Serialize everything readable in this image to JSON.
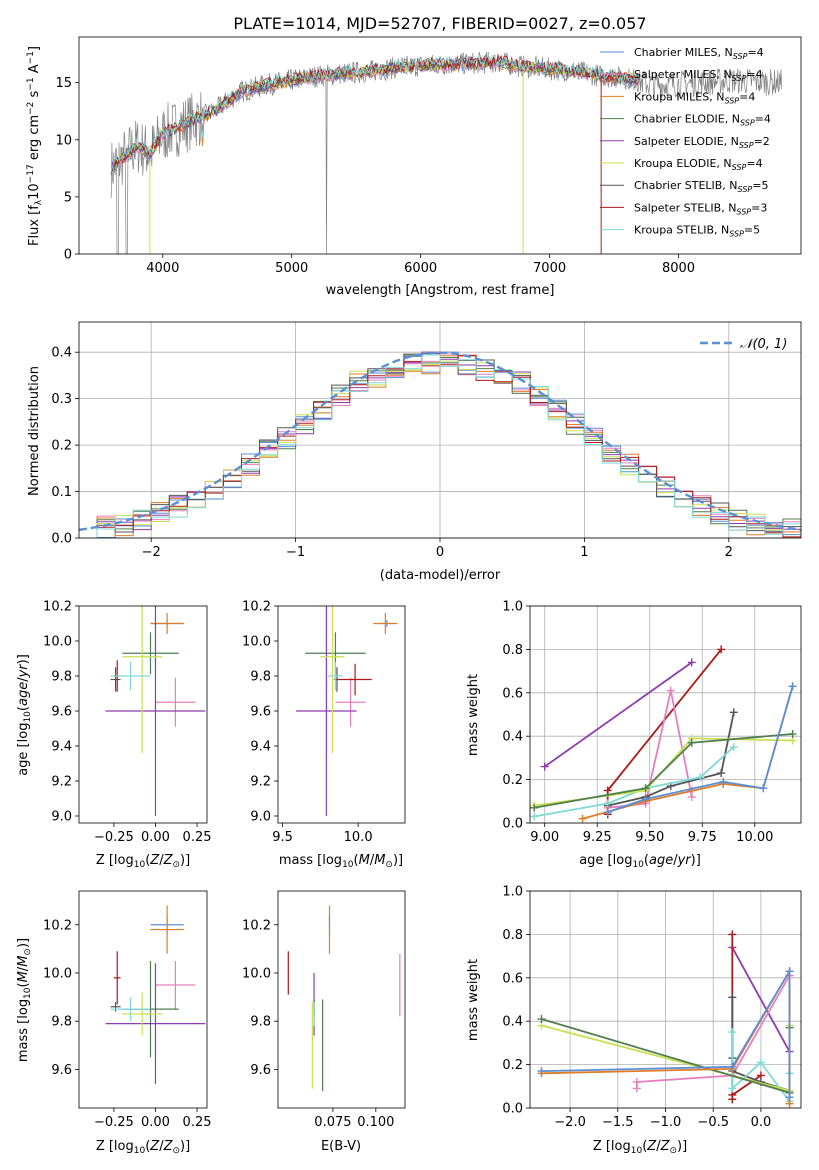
{
  "title": "PLATE=1014, MJD=52707, FIBERID=0027, z=0.057",
  "colors": {
    "Chabrier MILES": "#5b8fd6",
    "Salpeter MILES": "#e77fbf",
    "Kroupa MILES": "#e07b28",
    "Chabrier ELODIE": "#4f7f4f",
    "Salpeter ELODIE": "#8e3bb0",
    "Kroupa ELODIE": "#c8e04f",
    "Chabrier STELIB": "#555555",
    "Salpeter STELIB": "#b01818",
    "Kroupa STELIB": "#7fd9d9",
    "data": "#808080",
    "normal": "#5b8fd6"
  },
  "chart_data": [
    {
      "id": "spectrum",
      "type": "line",
      "xlabel": "wavelength [Angstrom, rest frame]",
      "ylabel": "Flux [f_λ10^-17 erg cm^-2 s^-1 A^-1]",
      "xlim": [
        3350,
        8950
      ],
      "ylim": [
        0,
        19
      ],
      "xticks": [
        4000,
        5000,
        6000,
        7000,
        8000
      ],
      "yticks": [
        0,
        5,
        10,
        15
      ],
      "legend_position": "right",
      "legend": [
        {
          "model": "Chabrier MILES",
          "nssp": "4"
        },
        {
          "model": "Salpeter MILES",
          "nssp": "4"
        },
        {
          "model": "Kroupa MILES",
          "nssp": "4"
        },
        {
          "model": "Chabrier ELODIE",
          "nssp": "4"
        },
        {
          "model": "Salpeter ELODIE",
          "nssp": "2"
        },
        {
          "model": "Kroupa ELODIE",
          "nssp": "4"
        },
        {
          "model": "Chabrier STELIB",
          "nssp": "5"
        },
        {
          "model": "Salpeter STELIB",
          "nssp": "3"
        },
        {
          "model": "Kroupa STELIB",
          "nssp": "5"
        }
      ],
      "continuum": [
        [
          3600,
          7.5
        ],
        [
          3700,
          8.5
        ],
        [
          3800,
          9.5
        ],
        [
          3900,
          8.8
        ],
        [
          4000,
          10.5
        ],
        [
          4200,
          11.5
        ],
        [
          4400,
          12.5
        ],
        [
          4600,
          14.2
        ],
        [
          4800,
          14.8
        ],
        [
          5000,
          15.2
        ],
        [
          5200,
          15.6
        ],
        [
          5400,
          15.8
        ],
        [
          5600,
          16.0
        ],
        [
          5800,
          16.3
        ],
        [
          6000,
          16.5
        ],
        [
          6200,
          16.6
        ],
        [
          6400,
          16.7
        ],
        [
          6600,
          16.8
        ],
        [
          6800,
          16.4
        ],
        [
          7000,
          16.2
        ],
        [
          7200,
          16.0
        ],
        [
          7400,
          15.6
        ],
        [
          7600,
          15.4
        ],
        [
          7800,
          14.8
        ],
        [
          8000,
          14.9
        ],
        [
          8200,
          15.0
        ],
        [
          8400,
          15.2
        ],
        [
          8600,
          15.1
        ],
        [
          8800,
          15.0
        ]
      ]
    },
    {
      "id": "residuals",
      "type": "bar",
      "xlabel": "(data-model)/error",
      "ylabel": "Normed distribution",
      "xlim": [
        -2.5,
        2.5
      ],
      "ylim": [
        0,
        0.465
      ],
      "xticks": [
        -2,
        -1,
        0,
        1,
        2
      ],
      "xtick_labels": [
        "−2",
        "−1",
        "0",
        "1",
        "2"
      ],
      "yticks": [
        0.0,
        0.1,
        0.2,
        0.3,
        0.4
      ],
      "grid": true,
      "legend_position": "top-right",
      "normal_label": "𝒩(0, 1)"
    },
    {
      "id": "age_vs_Z",
      "type": "scatter",
      "xlabel": "Z [log10(Z/Z⊙)]",
      "ylabel": "age [log10(age/yr)]",
      "xlim": [
        -0.46,
        0.31
      ],
      "ylim": [
        8.96,
        10.2
      ],
      "xticks": [
        -0.25,
        0.0,
        0.25
      ],
      "xtick_labels": [
        "−0.25",
        "0.00",
        "0.25"
      ],
      "yticks": [
        9.0,
        9.2,
        9.4,
        9.6,
        9.8,
        10.0,
        10.2
      ],
      "points": [
        {
          "model": "Chabrier MILES",
          "x": 0.07,
          "xerr": 0.1,
          "y": 10.1,
          "yerr": 0.02
        },
        {
          "model": "Salpeter MILES",
          "x": 0.12,
          "xerr": 0.12,
          "y": 9.65,
          "yerr": 0.14
        },
        {
          "model": "Kroupa MILES",
          "x": 0.07,
          "xerr": 0.1,
          "y": 10.1,
          "yerr": 0.06
        },
        {
          "model": "Chabrier ELODIE",
          "x": -0.03,
          "xerr": 0.17,
          "y": 9.93,
          "yerr": 0.12
        },
        {
          "model": "Salpeter ELODIE",
          "x": 0.0,
          "xerr": 0.3,
          "y": 9.6,
          "yerr": 0.6
        },
        {
          "model": "Kroupa ELODIE",
          "x": -0.08,
          "xerr": 0.12,
          "y": 9.91,
          "yerr": 0.55
        },
        {
          "model": "Chabrier STELIB",
          "x": -0.24,
          "xerr": 0.03,
          "y": 9.78,
          "yerr": 0.07
        },
        {
          "model": "Salpeter STELIB",
          "x": -0.23,
          "xerr": 0.02,
          "y": 9.8,
          "yerr": 0.09
        },
        {
          "model": "Kroupa STELIB",
          "x": -0.15,
          "xerr": 0.12,
          "y": 9.8,
          "yerr": 0.08
        }
      ]
    },
    {
      "id": "age_vs_mass",
      "type": "scatter",
      "xlabel": "mass [log10(M/M⊙)]",
      "xlim": [
        9.47,
        10.31
      ],
      "ylim": [
        8.96,
        10.2
      ],
      "xticks": [
        9.5,
        10.0
      ],
      "xtick_labels": [
        "9.5",
        "10.0"
      ],
      "yticks": [
        9.0,
        9.2,
        9.4,
        9.6,
        9.8,
        10.0,
        10.2
      ],
      "points": [
        {
          "model": "Chabrier MILES",
          "x": 10.19,
          "xerr": 0.05,
          "y": 10.1,
          "yerr": 0.02
        },
        {
          "model": "Salpeter MILES",
          "x": 9.95,
          "xerr": 0.1,
          "y": 9.65,
          "yerr": 0.14
        },
        {
          "model": "Kroupa MILES",
          "x": 10.18,
          "xerr": 0.08,
          "y": 10.1,
          "yerr": 0.06
        },
        {
          "model": "Chabrier ELODIE",
          "x": 9.85,
          "xerr": 0.2,
          "y": 9.93,
          "yerr": 0.12
        },
        {
          "model": "Salpeter ELODIE",
          "x": 9.79,
          "xerr": 0.2,
          "y": 9.6,
          "yerr": 0.6
        },
        {
          "model": "Kroupa ELODIE",
          "x": 9.83,
          "xerr": 0.08,
          "y": 9.91,
          "yerr": 0.55
        },
        {
          "model": "Chabrier STELIB",
          "x": 9.86,
          "xerr": 0.02,
          "y": 9.78,
          "yerr": 0.07
        },
        {
          "model": "Salpeter STELIB",
          "x": 9.98,
          "xerr": 0.11,
          "y": 9.78,
          "yerr": 0.09
        },
        {
          "model": "Kroupa STELIB",
          "x": 9.85,
          "xerr": 0.05,
          "y": 9.8,
          "yerr": 0.08
        }
      ]
    },
    {
      "id": "weight_vs_age",
      "type": "line",
      "xlabel": "age [log10(age/yr)]",
      "ylabel": "mass weight",
      "xlim": [
        8.93,
        10.22
      ],
      "ylim": [
        0,
        1.0
      ],
      "xticks": [
        9.0,
        9.25,
        9.5,
        9.75,
        10.0
      ],
      "xtick_labels": [
        "9.00",
        "9.25",
        "9.50",
        "9.75",
        "10.00"
      ],
      "yticks": [
        0.0,
        0.2,
        0.4,
        0.6,
        0.8,
        1.0
      ],
      "grid": true,
      "series": [
        {
          "model": "Salpeter ELODIE",
          "x": [
            9.0,
            9.7
          ],
          "y": [
            0.26,
            0.74
          ]
        },
        {
          "model": "Salpeter STELIB",
          "x": [
            9.3,
            9.3,
            9.84
          ],
          "y": [
            0.04,
            0.15,
            0.8
          ]
        },
        {
          "model": "Salpeter MILES",
          "x": [
            9.3,
            9.48,
            9.6,
            9.7,
            9.7
          ],
          "y": [
            0.07,
            0.09,
            0.61,
            0.12,
            0.15
          ]
        },
        {
          "model": "Chabrier STELIB",
          "x": [
            9.3,
            9.48,
            9.6,
            9.84,
            9.9
          ],
          "y": [
            0.08,
            0.12,
            0.17,
            0.23,
            0.51
          ]
        },
        {
          "model": "Kroupa STELIB",
          "x": [
            8.95,
            9.3,
            9.48,
            9.74,
            9.9
          ],
          "y": [
            0.03,
            0.09,
            0.16,
            0.21,
            0.35
          ]
        },
        {
          "model": "Kroupa ELODIE",
          "x": [
            8.95,
            9.48,
            9.7,
            10.18
          ],
          "y": [
            0.08,
            0.15,
            0.39,
            0.38
          ]
        },
        {
          "model": "Chabrier ELODIE",
          "x": [
            8.95,
            9.48,
            9.7,
            10.18
          ],
          "y": [
            0.07,
            0.16,
            0.37,
            0.41
          ]
        },
        {
          "model": "Kroupa MILES",
          "x": [
            9.18,
            9.48,
            9.85,
            10.04,
            10.18
          ],
          "y": [
            0.02,
            0.1,
            0.18,
            0.16,
            0.63
          ]
        },
        {
          "model": "Chabrier MILES",
          "x": [
            9.3,
            9.48,
            9.85,
            10.04,
            10.18
          ],
          "y": [
            0.05,
            0.11,
            0.19,
            0.16,
            0.63
          ]
        }
      ]
    },
    {
      "id": "mass_vs_Z",
      "type": "scatter",
      "xlabel": "Z [log10(Z/Z⊙)]",
      "ylabel": "mass [log10(M/M⊙)]",
      "xlim": [
        -0.46,
        0.31
      ],
      "ylim": [
        9.44,
        10.34
      ],
      "xticks": [
        -0.25,
        0.0,
        0.25
      ],
      "xtick_labels": [
        "−0.25",
        "0.00",
        "0.25"
      ],
      "yticks": [
        9.6,
        9.8,
        10.0,
        10.2
      ],
      "points": [
        {
          "model": "Chabrier MILES",
          "x": 0.07,
          "xerr": 0.1,
          "y": 10.2,
          "yerr": 0.04
        },
        {
          "model": "Salpeter MILES",
          "x": 0.12,
          "xerr": 0.12,
          "y": 9.95,
          "yerr": 0.1
        },
        {
          "model": "Kroupa MILES",
          "x": 0.07,
          "xerr": 0.1,
          "y": 10.18,
          "yerr": 0.1
        },
        {
          "model": "Chabrier ELODIE",
          "x": -0.03,
          "xerr": 0.17,
          "y": 9.85,
          "yerr": 0.2
        },
        {
          "model": "Salpeter ELODIE",
          "x": 0.0,
          "xerr": 0.3,
          "y": 9.79,
          "yerr": 0.25
        },
        {
          "model": "Kroupa ELODIE",
          "x": -0.08,
          "xerr": 0.12,
          "y": 9.83,
          "yerr": 0.09
        },
        {
          "model": "Chabrier STELIB",
          "x": -0.24,
          "xerr": 0.03,
          "y": 9.86,
          "yerr": 0.02
        },
        {
          "model": "Salpeter STELIB",
          "x": -0.23,
          "xerr": 0.02,
          "y": 9.98,
          "yerr": 0.11
        },
        {
          "model": "Kroupa STELIB",
          "x": -0.15,
          "xerr": 0.12,
          "y": 9.85,
          "yerr": 0.05
        }
      ]
    },
    {
      "id": "mass_vs_ebv",
      "type": "scatter",
      "xlabel": "E(B-V)",
      "xlim": [
        0.043,
        0.117
      ],
      "ylim": [
        9.44,
        10.34
      ],
      "xticks": [
        0.075,
        0.1
      ],
      "xtick_labels": [
        "0.075",
        "0.100"
      ],
      "yticks": [
        9.6,
        9.8,
        10.0,
        10.2
      ],
      "points": [
        {
          "model": "Chabrier MILES",
          "x": 0.073,
          "y": 10.2,
          "yerr": 0.04
        },
        {
          "model": "Salpeter MILES",
          "x": 0.114,
          "y": 9.95,
          "yerr": 0.13
        },
        {
          "model": "Kroupa MILES",
          "x": 0.073,
          "y": 10.18,
          "yerr": 0.1
        },
        {
          "model": "Chabrier ELODIE",
          "x": 0.069,
          "y": 9.7,
          "yerr": 0.19
        },
        {
          "model": "Salpeter ELODIE",
          "x": 0.064,
          "y": 9.87,
          "yerr": 0.13
        },
        {
          "model": "Kroupa ELODIE",
          "x": 0.063,
          "y": 9.7,
          "yerr": 0.18
        },
        {
          "model": "Chabrier STELIB",
          "x": 0.064,
          "y": 9.86,
          "yerr": 0.03
        },
        {
          "model": "Salpeter STELIB",
          "x": 0.049,
          "y": 10.0,
          "yerr": 0.09
        },
        {
          "model": "Kroupa STELIB",
          "x": 0.064,
          "y": 9.83,
          "yerr": 0.05
        }
      ]
    },
    {
      "id": "weight_vs_Z",
      "type": "line",
      "xlabel": "Z [log10(Z/Z⊙)]",
      "ylabel": "mass weight",
      "xlim": [
        -2.42,
        0.42
      ],
      "ylim": [
        0,
        1.0
      ],
      "xticks": [
        -2.0,
        -1.5,
        -1.0,
        -0.5,
        0.0
      ],
      "xtick_labels": [
        "−2.0",
        "−1.5",
        "−1.0",
        "−0.5",
        "0.0"
      ],
      "yticks": [
        0.0,
        0.2,
        0.4,
        0.6,
        0.8,
        1.0
      ],
      "grid": true,
      "series": [
        {
          "model": "Salpeter ELODIE",
          "x": [
            -0.3,
            0.3
          ],
          "y": [
            0.74,
            0.26
          ]
        },
        {
          "model": "Salpeter STELIB",
          "x": [
            -0.3,
            -0.3,
            -0.3,
            0.0
          ],
          "y": [
            0.8,
            0.04,
            0.06,
            0.15
          ]
        },
        {
          "model": "Salpeter MILES",
          "x": [
            -1.3,
            -1.3,
            -0.3,
            0.3,
            0.3
          ],
          "y": [
            0.09,
            0.12,
            0.15,
            0.61,
            0.07
          ]
        },
        {
          "model": "Chabrier STELIB",
          "x": [
            -0.3,
            -0.3,
            -0.3,
            0.0,
            0.3
          ],
          "y": [
            0.51,
            0.23,
            0.17,
            0.12,
            0.08
          ]
        },
        {
          "model": "Kroupa STELIB",
          "x": [
            -0.3,
            -0.3,
            0.0,
            0.3,
            0.3
          ],
          "y": [
            0.35,
            0.09,
            0.21,
            0.03,
            0.16
          ]
        },
        {
          "model": "Kroupa ELODIE",
          "x": [
            -2.3,
            0.3,
            0.3
          ],
          "y": [
            0.38,
            0.08,
            0.38
          ]
        },
        {
          "model": "Chabrier ELODIE",
          "x": [
            -2.3,
            0.3,
            0.3
          ],
          "y": [
            0.41,
            0.07,
            0.37
          ]
        },
        {
          "model": "Kroupa MILES",
          "x": [
            -2.3,
            -0.3,
            0.3,
            0.3
          ],
          "y": [
            0.16,
            0.18,
            0.63,
            0.02
          ]
        },
        {
          "model": "Chabrier MILES",
          "x": [
            -2.3,
            -0.3,
            0.3,
            0.3
          ],
          "y": [
            0.17,
            0.19,
            0.63,
            0.05
          ]
        }
      ]
    }
  ]
}
